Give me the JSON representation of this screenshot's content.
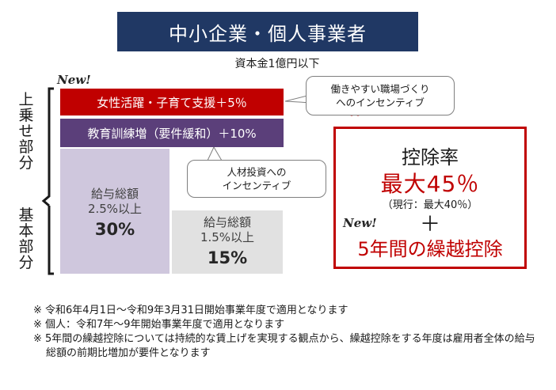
{
  "title": "中小企業・個人事業者",
  "capital": "資本金1億円以下",
  "labels": {
    "top": [
      "上",
      "乗",
      "せ",
      "部",
      "分"
    ],
    "base": [
      "基",
      "本",
      "部",
      "分"
    ]
  },
  "new_badge": "New!",
  "bands": {
    "women": "女性活躍・子育て支援＋5％",
    "training": "教育訓練増（要件緩和）＋10%"
  },
  "blocks": {
    "left": {
      "line1": "給与総額",
      "line2": "2.5%以上",
      "pct": "30%"
    },
    "right": {
      "line1": "給与総額",
      "line2": "1.5%以上",
      "pct": "15%"
    }
  },
  "callouts": {
    "workplace": [
      "働きやすい職場づくり",
      "へのインセンティブ"
    ],
    "investment": [
      "人材投資への",
      "インセンティブ"
    ]
  },
  "rate": {
    "title": "控除率",
    "max": "最大45％",
    "current": "（現行：最大40％）",
    "plus": "＋",
    "carryover": "5年間の繰越控除"
  },
  "notes": [
    "※ 令和6年4月1日～令和9年3月31日開始事業年度で適用となります",
    "※ 個人：令和7年～9年開始事業年度で適用となります",
    "※ 5年間の繰越控除については持続的な賃上げを実現する観点から、繰越控除をする年度は雇用者全体の給与総額の前期比増加が要件となります"
  ],
  "colors": {
    "navy": "#203864",
    "red": "#c00000",
    "purple": "#5b3f7a",
    "lavender": "#cfc7dd",
    "gray": "#e1e1e1"
  }
}
